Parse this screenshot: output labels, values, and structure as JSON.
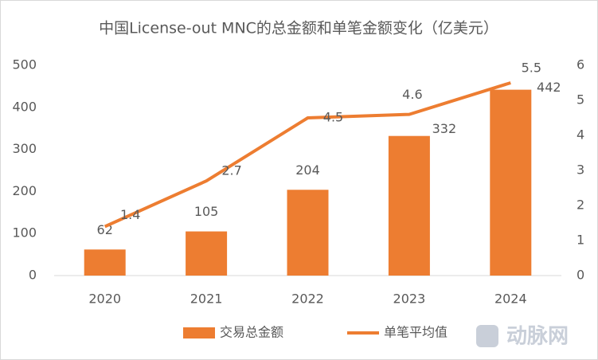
{
  "chart_data": {
    "type": "bar-line",
    "title": "中国License-out MNC的总金额和单笔金额变化（亿美元）",
    "categories": [
      "2020",
      "2021",
      "2022",
      "2023",
      "2024"
    ],
    "series": [
      {
        "name": "交易总金额",
        "type": "bar",
        "color": "#ed7d31",
        "values": [
          62,
          105,
          204,
          332,
          442
        ]
      },
      {
        "name": "单笔平均值",
        "type": "line",
        "axis": "y2",
        "color": "#ed7d31",
        "values": [
          1.4,
          2.7,
          4.5,
          4.6,
          5.5
        ]
      }
    ],
    "ylim": [
      0,
      500
    ],
    "yticks": [
      0,
      100,
      200,
      300,
      400,
      500
    ],
    "y2lim": [
      0,
      6
    ],
    "y2ticks": [
      0,
      1,
      2,
      3,
      4,
      5,
      6
    ],
    "grid": false,
    "legend": "bottom",
    "watermark": "动脉网"
  }
}
